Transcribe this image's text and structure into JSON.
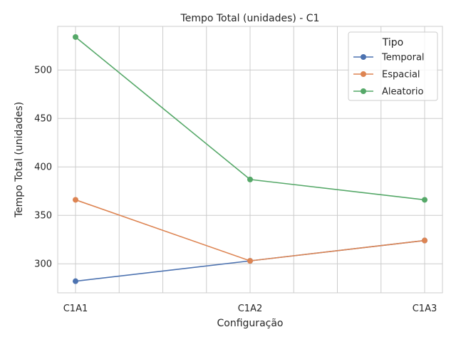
{
  "chart_data": {
    "type": "line",
    "title": "Tempo Total (unidades) - C1",
    "xlabel": "Configuração",
    "ylabel": "Tempo Total (unidades)",
    "categories": [
      "C1A1",
      "C1A2",
      "C1A3"
    ],
    "ylim": [
      270,
      545
    ],
    "yticks": [
      300,
      350,
      400,
      450,
      500
    ],
    "grid": true,
    "legend": {
      "title": "Tipo",
      "placement": "top-right"
    },
    "series": [
      {
        "name": "Temporal",
        "color": "#4c72b0",
        "values": [
          282,
          303,
          324
        ]
      },
      {
        "name": "Espacial",
        "color": "#dd8452",
        "values": [
          366,
          303,
          324
        ]
      },
      {
        "name": "Aleatorio",
        "color": "#55a868",
        "values": [
          534,
          387,
          366
        ]
      }
    ]
  }
}
